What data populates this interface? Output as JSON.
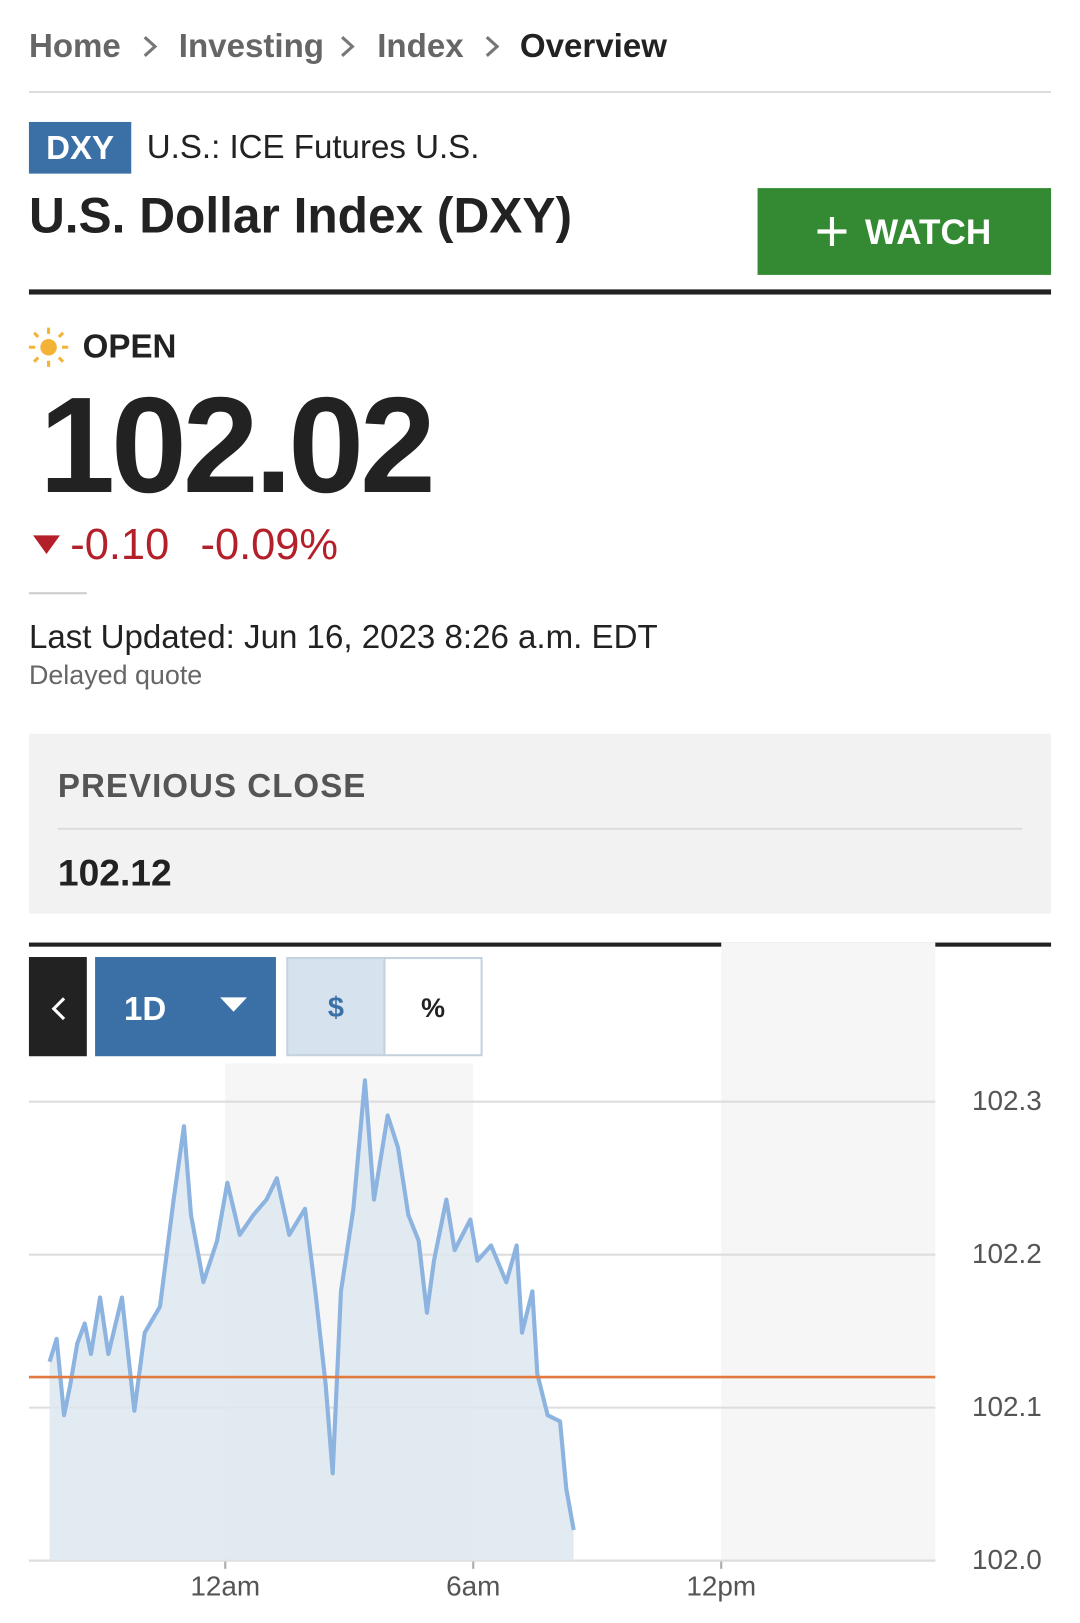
{
  "breadcrumb": [
    "Home",
    "Investing",
    "Index",
    "Overview"
  ],
  "symbol": "DXY",
  "exchange": "U.S.: ICE Futures U.S.",
  "name": "U.S. Dollar Index (DXY)",
  "watch_button": "WATCH",
  "status": "OPEN",
  "price": "102.02",
  "change": "-0.10",
  "change_percent": "-0.09%",
  "last_updated": "Last Updated: Jun 16, 2023 8:26 a.m. EDT",
  "delay_note": "Delayed quote",
  "previous_close": {
    "label": "PREVIOUS CLOSE",
    "value": 102.12,
    "color": "#e07a3e"
  },
  "chart_controls": {
    "range": "1D",
    "currency": "$",
    "percent": "%"
  },
  "chart_data": {
    "type": "line",
    "x": [
      -4.25,
      -4.08,
      -3.9,
      -3.75,
      -3.58,
      -3.4,
      -3.25,
      -3.03,
      -2.83,
      -2.5,
      -2.2,
      -1.95,
      -1.58,
      -1.25,
      -1.0,
      -0.83,
      -0.53,
      -0.2,
      0.05,
      0.35,
      0.68,
      1.0,
      1.25,
      1.55,
      1.93,
      2.18,
      2.43,
      2.6,
      2.8,
      3.1,
      3.38,
      3.6,
      3.93,
      4.18,
      4.43,
      4.68,
      4.88,
      5.05,
      5.35,
      5.55,
      5.93,
      6.1,
      6.43,
      6.8,
      7.05,
      7.18,
      7.43,
      7.55,
      7.8,
      8.1,
      8.25,
      8.43
    ],
    "values": [
      102.13,
      102.145,
      102.095,
      102.115,
      102.142,
      102.155,
      102.135,
      102.172,
      102.135,
      102.172,
      102.098,
      102.149,
      102.166,
      102.236,
      102.284,
      102.226,
      102.182,
      102.209,
      102.247,
      102.213,
      102.226,
      102.236,
      102.25,
      102.213,
      102.23,
      102.176,
      102.115,
      102.057,
      102.176,
      102.23,
      102.314,
      102.236,
      102.291,
      102.27,
      102.226,
      102.209,
      102.162,
      102.196,
      102.236,
      102.203,
      102.223,
      102.196,
      102.206,
      102.182,
      102.206,
      102.149,
      102.176,
      102.122,
      102.095,
      102.091,
      102.047,
      102.02
    ],
    "color": "#8db4e0",
    "fill_color": "#dde7f0",
    "xlim": [
      -4.75,
      17.18
    ],
    "xticks": [
      {
        "value": 0,
        "label": "12am"
      },
      {
        "value": 6,
        "label": "6am"
      },
      {
        "value": 12,
        "label": "12pm"
      }
    ],
    "ylim": [
      102.0,
      102.325
    ],
    "yticks": [
      {
        "value": 102.0,
        "label": "102.0"
      },
      102.1,
      102.2,
      102.3
    ],
    "grid": true
  }
}
